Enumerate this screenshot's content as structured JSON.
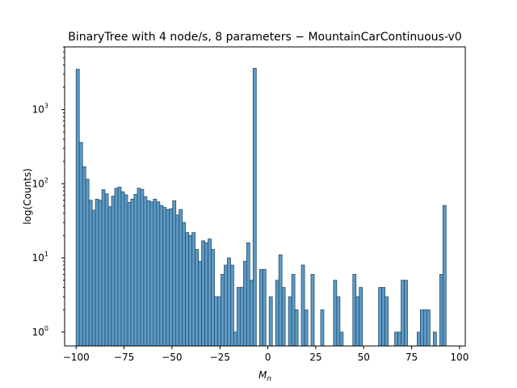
{
  "chart_data": {
    "type": "bar",
    "title": "BinaryTree with 4 node/s, 8 parameters − MountainCarContinuous-v0",
    "xlabel": "M",
    "xlabel_subscript": "n",
    "ylabel": "log(Counts)",
    "yscale": "log",
    "xlim": [
      -106,
      103
    ],
    "ylim": [
      0.65,
      7000
    ],
    "grid": false,
    "bin_edges_range": [
      -100,
      93
    ],
    "x_ticks": [
      {
        "value": -100,
        "label": "−100"
      },
      {
        "value": -75,
        "label": "−75"
      },
      {
        "value": -50,
        "label": "−50"
      },
      {
        "value": -25,
        "label": "−25"
      },
      {
        "value": 0,
        "label": "0"
      },
      {
        "value": 25,
        "label": "25"
      },
      {
        "value": 50,
        "label": "50"
      },
      {
        "value": 75,
        "label": "75"
      },
      {
        "value": 100,
        "label": "100"
      }
    ],
    "y_ticks": [
      {
        "value": 1,
        "base": "10",
        "exp": "0"
      },
      {
        "value": 10,
        "base": "10",
        "exp": "1"
      },
      {
        "value": 100,
        "base": "10",
        "exp": "2"
      },
      {
        "value": 1000,
        "base": "10",
        "exp": "3"
      }
    ],
    "counts": [
      3500,
      360,
      170,
      115,
      60,
      44,
      62,
      60,
      83,
      73,
      49,
      68,
      87,
      90,
      78,
      71,
      56,
      62,
      72,
      87,
      84,
      67,
      59,
      57,
      62,
      57,
      51,
      48,
      45,
      46,
      59,
      38,
      45,
      30,
      22,
      20,
      22,
      13,
      9,
      17,
      16,
      18,
      13,
      3,
      3,
      6,
      8,
      10,
      8,
      1,
      4,
      4,
      9,
      16,
      5,
      3600,
      0,
      7,
      7,
      0,
      3,
      0,
      5,
      11,
      4,
      0,
      3,
      6,
      2,
      0,
      8,
      2,
      0,
      6,
      0,
      0,
      2,
      0,
      0,
      0,
      5,
      3,
      1,
      0,
      0,
      0,
      6,
      3,
      4,
      0,
      0,
      0,
      0,
      0,
      4,
      4,
      3,
      0,
      0,
      1,
      1,
      5,
      5,
      0,
      0,
      0,
      1,
      2,
      2,
      2,
      0,
      1,
      0,
      6,
      51
    ],
    "bar_color": "#5b9bc7",
    "bar_edge_color": "#2b4d66"
  }
}
